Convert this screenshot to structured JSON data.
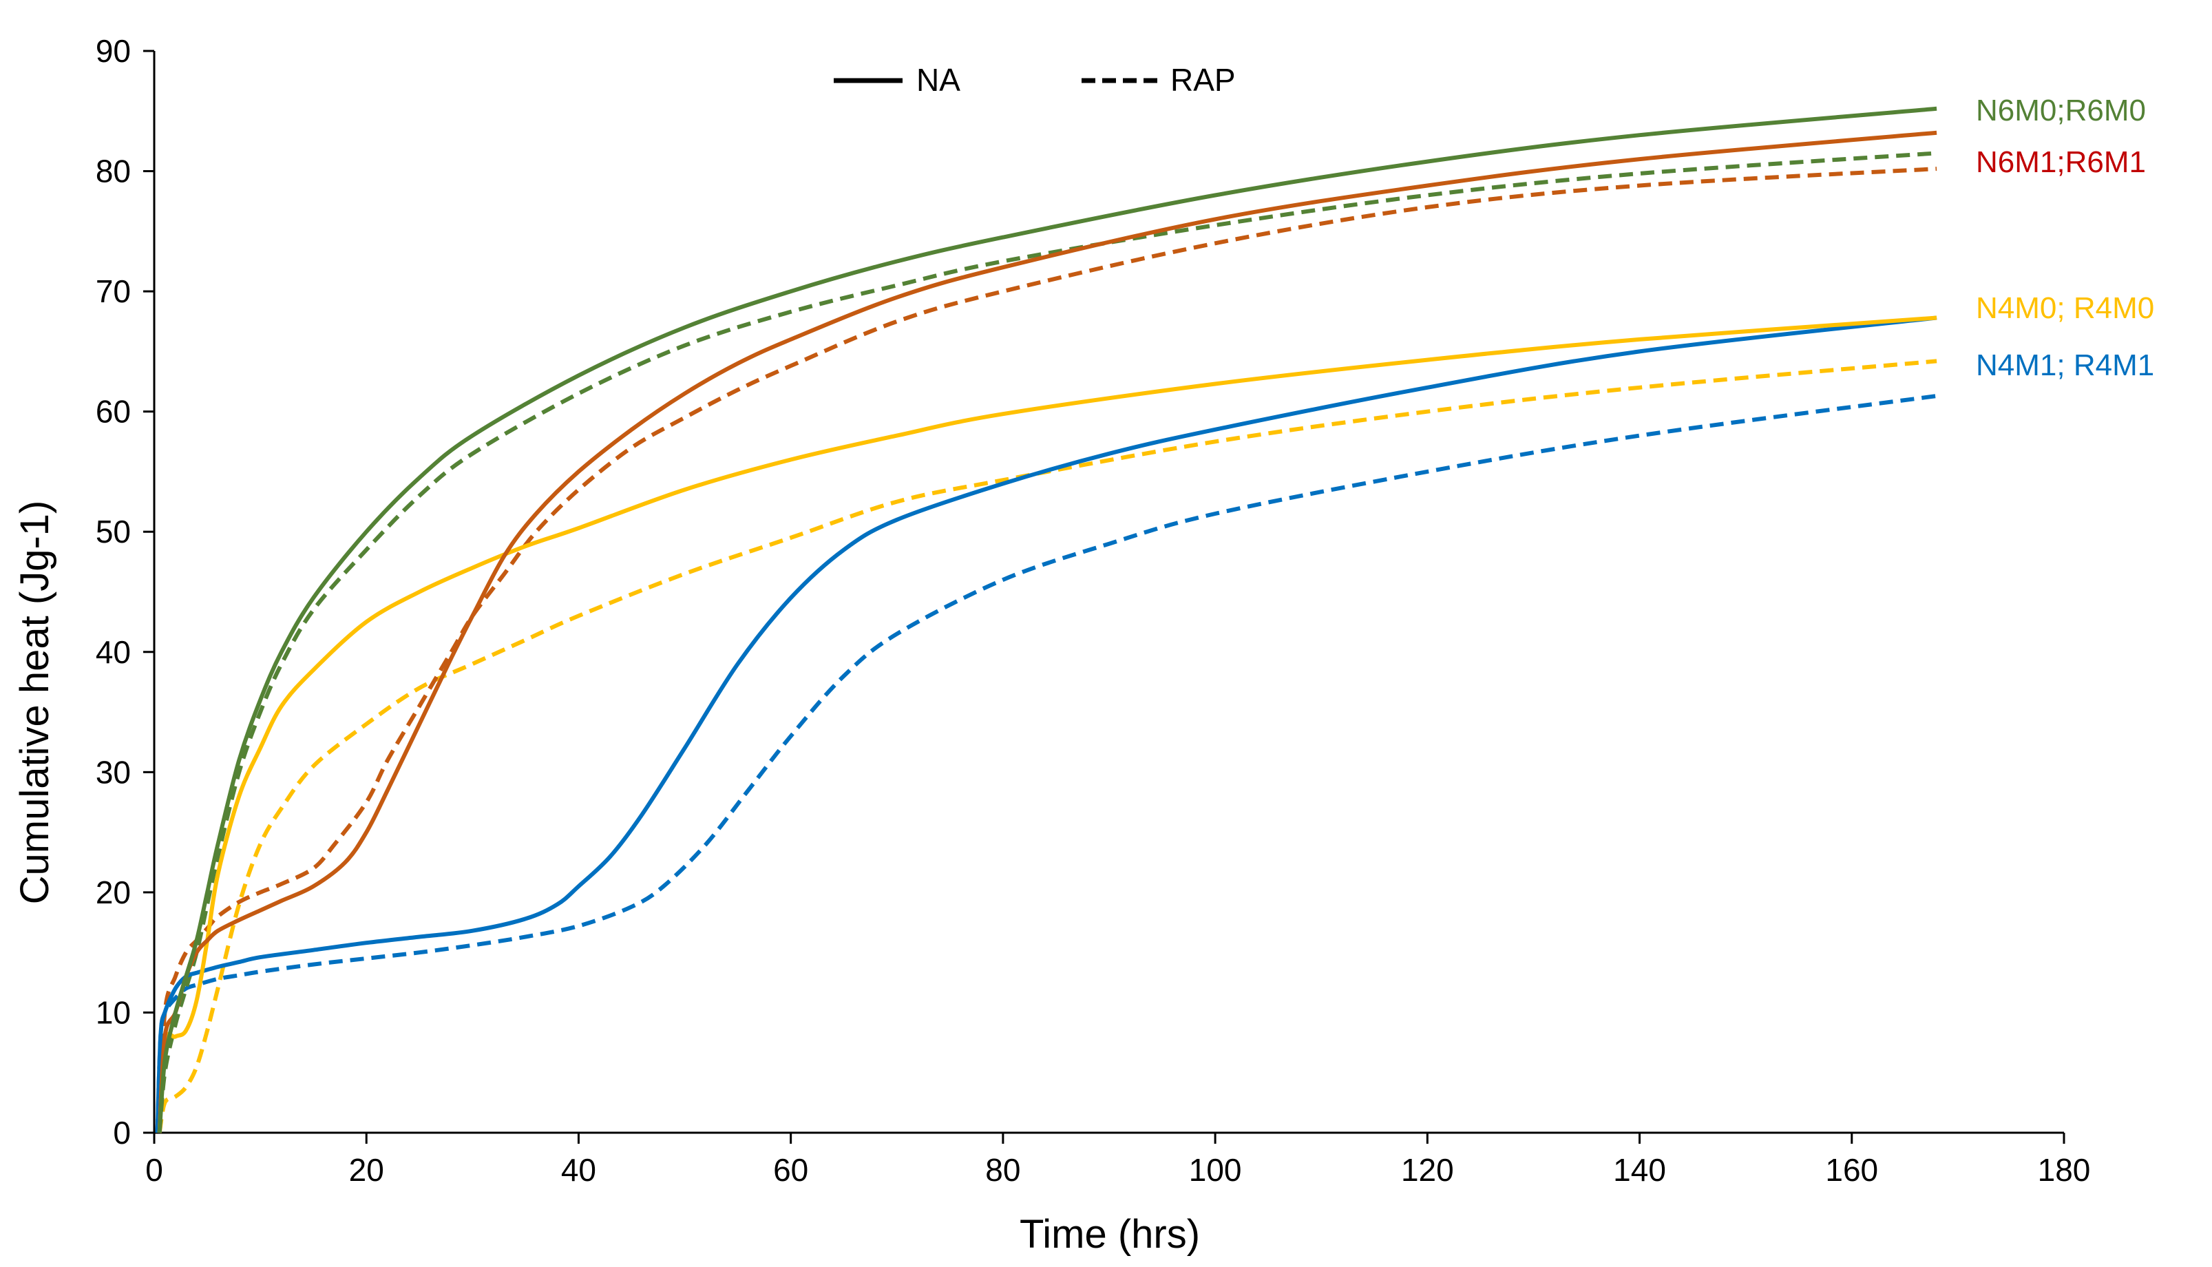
{
  "chart_data": {
    "type": "line",
    "title": "",
    "xlabel": "Time (hrs)",
    "ylabel": "Cumulative heat (Jg-1)",
    "xlim": [
      0,
      180
    ],
    "ylim": [
      0,
      90
    ],
    "x_ticks": [
      0,
      20,
      40,
      60,
      80,
      100,
      120,
      140,
      160,
      180
    ],
    "y_ticks": [
      0,
      10,
      20,
      30,
      40,
      50,
      60,
      70,
      80,
      90
    ],
    "grid": false,
    "legend": {
      "position": "top-center",
      "entries": [
        {
          "label": "NA",
          "style": "solid"
        },
        {
          "label": "RAP",
          "style": "dashed"
        }
      ]
    },
    "series_labels": [
      {
        "text": "N6M0;R6M0",
        "color": "#538135"
      },
      {
        "text": "N6M1;R6M1",
        "color": "#C00000"
      },
      {
        "text": "N4M0; R4M0",
        "color": "#FFC000"
      },
      {
        "text": "N4M1; R4M1",
        "color": "#0070C0"
      }
    ],
    "series": [
      {
        "name": "N6M0",
        "style": "solid",
        "color": "#548235",
        "x": [
          0.5,
          1,
          2,
          3,
          4,
          5,
          6,
          8,
          10,
          12,
          15,
          20,
          25,
          30,
          40,
          50,
          60,
          70,
          80,
          100,
          120,
          140,
          168
        ],
        "y": [
          0,
          6,
          10,
          13,
          16,
          20,
          24,
          31,
          36,
          40,
          44.5,
          50,
          54.5,
          58,
          63,
          67,
          70,
          72.5,
          74.5,
          78,
          80.8,
          83,
          85.2
        ]
      },
      {
        "name": "R6M0",
        "style": "dashed",
        "color": "#548235",
        "x": [
          0.5,
          1,
          2,
          3,
          4,
          5,
          6,
          8,
          10,
          12,
          15,
          20,
          25,
          30,
          40,
          50,
          60,
          70,
          80,
          100,
          120,
          140,
          168
        ],
        "y": [
          0,
          5,
          9,
          12,
          15,
          19,
          23,
          30,
          35,
          39,
          43.5,
          48.5,
          53,
          56.5,
          61.5,
          65.5,
          68.3,
          70.5,
          72.5,
          75.5,
          78,
          79.8,
          81.5
        ]
      },
      {
        "name": "N6M1",
        "style": "solid",
        "color": "#C55A11",
        "x": [
          0.5,
          1,
          2,
          3,
          4,
          5,
          6,
          8,
          10,
          12,
          15,
          18,
          20,
          22,
          25,
          28,
          30,
          33,
          36,
          40,
          45,
          50,
          55,
          60,
          70,
          80,
          100,
          120,
          140,
          168
        ],
        "y": [
          0,
          8,
          10,
          13,
          15,
          16,
          16.8,
          17.7,
          18.5,
          19.3,
          20.5,
          22.5,
          25,
          28.5,
          34,
          39.5,
          43,
          48,
          51.5,
          55,
          58.5,
          61.5,
          64,
          66,
          69.5,
          72,
          76,
          78.8,
          81,
          83.2
        ]
      },
      {
        "name": "R6M1",
        "style": "dashed",
        "color": "#C55A11",
        "x": [
          0.5,
          1,
          2,
          3,
          4,
          5,
          6,
          8,
          10,
          12,
          15,
          17,
          20,
          22,
          25,
          28,
          30,
          33,
          36,
          40,
          45,
          50,
          55,
          60,
          70,
          80,
          100,
          120,
          140,
          168
        ],
        "y": [
          0,
          10,
          13,
          15,
          16,
          17,
          18,
          19.2,
          20,
          20.7,
          22,
          24,
          27.5,
          31,
          35.5,
          40,
          43,
          46.5,
          50,
          53.5,
          57,
          59.5,
          61.8,
          63.8,
          67.5,
          70,
          74,
          77,
          78.8,
          80.2
        ]
      },
      {
        "name": "N4M0",
        "style": "solid",
        "color": "#FFC000",
        "x": [
          0.5,
          1,
          2,
          3,
          4,
          5,
          6,
          8,
          10,
          12,
          15,
          20,
          25,
          30,
          35,
          40,
          50,
          60,
          70,
          80,
          100,
          120,
          140,
          168
        ],
        "y": [
          0,
          7.5,
          8,
          8.5,
          11,
          16,
          21.5,
          28,
          32,
          35.5,
          38.5,
          42.5,
          45,
          47,
          48.8,
          50.3,
          53.5,
          56,
          58,
          59.8,
          62.3,
          64.3,
          66,
          67.8
        ]
      },
      {
        "name": "R4M0",
        "style": "dashed",
        "color": "#FFC000",
        "x": [
          0.5,
          1,
          2,
          3,
          4,
          5,
          6,
          8,
          10,
          12,
          15,
          20,
          25,
          30,
          35,
          40,
          50,
          60,
          70,
          80,
          100,
          120,
          140,
          168
        ],
        "y": [
          0,
          2.5,
          3,
          3.8,
          5.5,
          8.5,
          12,
          19,
          24,
          27,
          30.5,
          34,
          37,
          39,
          41,
          43,
          46.5,
          49.5,
          52.5,
          54.3,
          57.5,
          60,
          62,
          64.2
        ]
      },
      {
        "name": "N4M1",
        "style": "solid",
        "color": "#0070C0",
        "x": [
          0.3,
          0.6,
          1,
          2,
          3,
          4,
          6,
          8,
          10,
          15,
          20,
          25,
          30,
          35,
          38,
          40,
          43,
          46,
          50,
          55,
          60,
          65,
          70,
          80,
          90,
          100,
          120,
          140,
          168
        ],
        "y": [
          0,
          8,
          10,
          12,
          13,
          13.3,
          13.8,
          14.2,
          14.6,
          15.2,
          15.8,
          16.3,
          16.8,
          17.8,
          19,
          20.5,
          23,
          26.5,
          32,
          39,
          44.5,
          48.5,
          51,
          54,
          56.5,
          58.5,
          62,
          65,
          67.8
        ]
      },
      {
        "name": "R4M1",
        "style": "dashed",
        "color": "#0070C0",
        "x": [
          0.3,
          0.6,
          1,
          2,
          3,
          4,
          6,
          8,
          10,
          15,
          20,
          25,
          30,
          35,
          40,
          45,
          48,
          52,
          56,
          60,
          65,
          70,
          80,
          90,
          100,
          120,
          140,
          168
        ],
        "y": [
          0,
          8,
          10,
          11.2,
          12,
          12.3,
          12.8,
          13.1,
          13.4,
          14,
          14.5,
          15,
          15.6,
          16.3,
          17.2,
          18.8,
          20.5,
          24,
          28.5,
          33,
          38,
          41.5,
          46,
          49,
          51.5,
          55,
          58,
          61.3
        ]
      }
    ]
  }
}
